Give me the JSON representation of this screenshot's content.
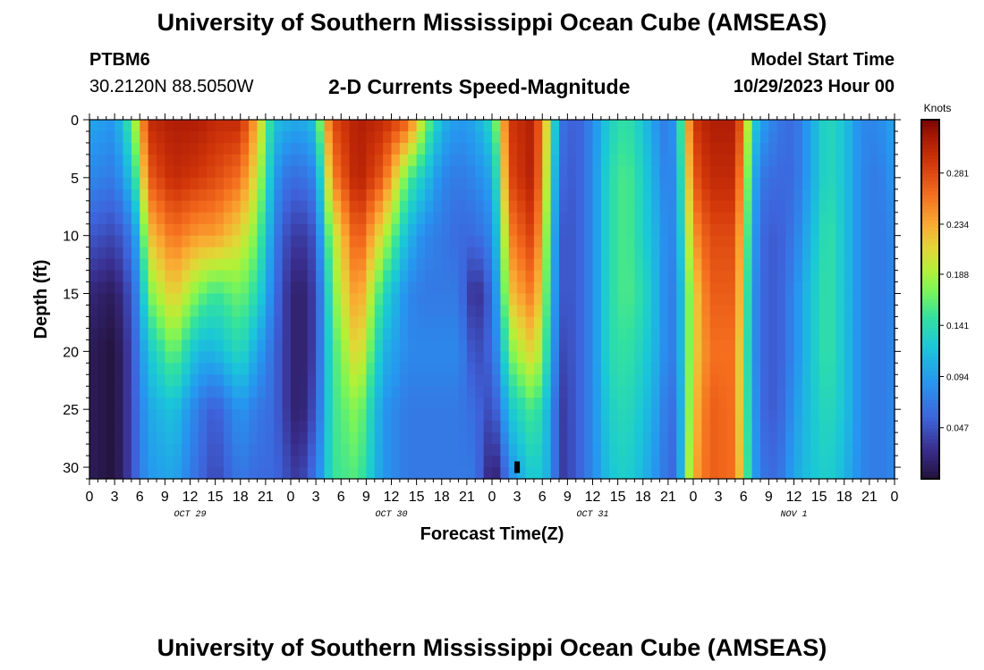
{
  "header": {
    "title": "University of Southern Mississippi Ocean Cube (AMSEAS)",
    "station": "PTBM6",
    "location": "30.2120N  88.5050W",
    "subtitle": "2-D Currents Speed-Magnitude",
    "model_label": "Model Start Time",
    "model_time": "10/29/2023 Hour 00"
  },
  "footer": {
    "title": "University of Southern Mississippi Ocean Cube (AMSEAS)"
  },
  "chart_data": {
    "type": "heatmap",
    "title": "2-D Currents Speed-Magnitude",
    "xlabel": "Forecast Time(Z)",
    "ylabel": "Depth (ft)",
    "ylim": [
      0,
      31
    ],
    "xlim": [
      0,
      96
    ],
    "x_tick_labels": [
      "0",
      "3",
      "6",
      "9",
      "12",
      "15",
      "18",
      "21",
      "0",
      "3",
      "6",
      "9",
      "12",
      "15",
      "18",
      "21",
      "0",
      "3",
      "6",
      "9",
      "12",
      "15",
      "18",
      "21",
      "0",
      "3",
      "6",
      "9",
      "12",
      "15",
      "18",
      "21",
      "0"
    ],
    "y_ticks": [
      0,
      5,
      10,
      15,
      20,
      25,
      30
    ],
    "day_labels": [
      "OCT 29",
      "OCT 30",
      "OCT 31",
      "NOV 1"
    ],
    "colorbar": {
      "unit": "Knots",
      "ticks": [
        "0.281",
        "0.234",
        "0.188",
        "0.141",
        "0.094",
        "0.047"
      ],
      "tick_values": [
        0.281,
        0.234,
        0.188,
        0.141,
        0.094,
        0.047
      ],
      "range": [
        0,
        0.33
      ]
    },
    "profile_keyframes_depths_ft": [
      0,
      5,
      10,
      15,
      20,
      25,
      31
    ],
    "profile_keyframes_speeds_kn": [
      {
        "t": 0,
        "v": [
          0.1,
          0.08,
          0.05,
          0.02,
          0.01,
          0.01,
          0.01
        ]
      },
      {
        "t": 3,
        "v": [
          0.09,
          0.07,
          0.04,
          0.01,
          0.0,
          0.0,
          0.0
        ]
      },
      {
        "t": 5,
        "v": [
          0.16,
          0.12,
          0.07,
          0.05,
          0.04,
          0.04,
          0.04
        ]
      },
      {
        "t": 6,
        "v": [
          0.22,
          0.18,
          0.12,
          0.09,
          0.08,
          0.07,
          0.07
        ]
      },
      {
        "t": 7,
        "v": [
          0.3,
          0.27,
          0.22,
          0.17,
          0.12,
          0.1,
          0.09
        ]
      },
      {
        "t": 10,
        "v": [
          0.31,
          0.3,
          0.26,
          0.22,
          0.17,
          0.12,
          0.1
        ]
      },
      {
        "t": 13,
        "v": [
          0.31,
          0.29,
          0.24,
          0.17,
          0.11,
          0.07,
          0.06
        ]
      },
      {
        "t": 15,
        "v": [
          0.3,
          0.28,
          0.24,
          0.15,
          0.11,
          0.05,
          0.04
        ]
      },
      {
        "t": 18,
        "v": [
          0.3,
          0.26,
          0.21,
          0.17,
          0.14,
          0.09,
          0.07
        ]
      },
      {
        "t": 20,
        "v": [
          0.23,
          0.2,
          0.17,
          0.14,
          0.1,
          0.07,
          0.06
        ]
      },
      {
        "t": 22,
        "v": [
          0.12,
          0.1,
          0.08,
          0.07,
          0.06,
          0.06,
          0.06
        ]
      },
      {
        "t": 23,
        "v": [
          0.11,
          0.07,
          0.05,
          0.04,
          0.04,
          0.04,
          0.05
        ]
      },
      {
        "t": 25,
        "v": [
          0.1,
          0.06,
          0.03,
          0.01,
          0.01,
          0.01,
          0.03
        ]
      },
      {
        "t": 27,
        "v": [
          0.12,
          0.08,
          0.05,
          0.04,
          0.04,
          0.05,
          0.07
        ]
      },
      {
        "t": 28,
        "v": [
          0.22,
          0.17,
          0.13,
          0.1,
          0.1,
          0.1,
          0.11
        ]
      },
      {
        "t": 29,
        "v": [
          0.28,
          0.25,
          0.19,
          0.17,
          0.15,
          0.15,
          0.15
        ]
      },
      {
        "t": 32,
        "v": [
          0.31,
          0.31,
          0.28,
          0.25,
          0.22,
          0.18,
          0.16
        ]
      },
      {
        "t": 35,
        "v": [
          0.3,
          0.27,
          0.2,
          0.14,
          0.11,
          0.09,
          0.09
        ]
      },
      {
        "t": 38,
        "v": [
          0.27,
          0.16,
          0.11,
          0.08,
          0.08,
          0.07,
          0.07
        ]
      },
      {
        "t": 40,
        "v": [
          0.18,
          0.12,
          0.08,
          0.07,
          0.08,
          0.07,
          0.07
        ]
      },
      {
        "t": 42,
        "v": [
          0.11,
          0.08,
          0.07,
          0.07,
          0.08,
          0.07,
          0.07
        ]
      },
      {
        "t": 44,
        "v": [
          0.09,
          0.07,
          0.06,
          0.07,
          0.08,
          0.07,
          0.07
        ]
      },
      {
        "t": 46,
        "v": [
          0.1,
          0.08,
          0.06,
          0.02,
          0.04,
          0.06,
          0.07
        ]
      },
      {
        "t": 48,
        "v": [
          0.14,
          0.1,
          0.08,
          0.06,
          0.06,
          0.04,
          0.01
        ]
      },
      {
        "t": 49,
        "v": [
          0.2,
          0.17,
          0.14,
          0.12,
          0.1,
          0.07,
          0.03
        ]
      },
      {
        "t": 50,
        "v": [
          0.29,
          0.28,
          0.25,
          0.22,
          0.17,
          0.12,
          0.08
        ]
      },
      {
        "t": 53,
        "v": [
          0.31,
          0.31,
          0.29,
          0.26,
          0.22,
          0.16,
          0.13
        ]
      },
      {
        "t": 55,
        "v": [
          0.18,
          0.16,
          0.14,
          0.13,
          0.12,
          0.1,
          0.1
        ]
      },
      {
        "t": 56,
        "v": [
          0.07,
          0.06,
          0.05,
          0.05,
          0.04,
          0.03,
          0.03
        ]
      },
      {
        "t": 58,
        "v": [
          0.05,
          0.05,
          0.05,
          0.05,
          0.05,
          0.05,
          0.05
        ]
      },
      {
        "t": 60,
        "v": [
          0.08,
          0.08,
          0.08,
          0.08,
          0.08,
          0.08,
          0.08
        ]
      },
      {
        "t": 62,
        "v": [
          0.13,
          0.14,
          0.14,
          0.14,
          0.14,
          0.13,
          0.12
        ]
      },
      {
        "t": 64,
        "v": [
          0.15,
          0.16,
          0.16,
          0.16,
          0.15,
          0.14,
          0.13
        ]
      },
      {
        "t": 66,
        "v": [
          0.12,
          0.13,
          0.13,
          0.14,
          0.13,
          0.12,
          0.11
        ]
      },
      {
        "t": 68,
        "v": [
          0.08,
          0.09,
          0.1,
          0.1,
          0.1,
          0.09,
          0.08
        ]
      },
      {
        "t": 69,
        "v": [
          0.07,
          0.07,
          0.07,
          0.07,
          0.07,
          0.06,
          0.06
        ]
      },
      {
        "t": 70,
        "v": [
          0.1,
          0.09,
          0.09,
          0.08,
          0.08,
          0.07,
          0.06
        ]
      },
      {
        "t": 71,
        "v": [
          0.2,
          0.18,
          0.16,
          0.14,
          0.14,
          0.14,
          0.15
        ]
      },
      {
        "t": 72,
        "v": [
          0.29,
          0.27,
          0.24,
          0.21,
          0.21,
          0.22,
          0.23
        ]
      },
      {
        "t": 74,
        "v": [
          0.31,
          0.3,
          0.28,
          0.27,
          0.26,
          0.27,
          0.27
        ]
      },
      {
        "t": 77,
        "v": [
          0.31,
          0.3,
          0.28,
          0.27,
          0.26,
          0.26,
          0.26
        ]
      },
      {
        "t": 78,
        "v": [
          0.25,
          0.22,
          0.2,
          0.19,
          0.18,
          0.18,
          0.19
        ]
      },
      {
        "t": 79,
        "v": [
          0.14,
          0.12,
          0.11,
          0.1,
          0.1,
          0.11,
          0.11
        ]
      },
      {
        "t": 80,
        "v": [
          0.1,
          0.07,
          0.06,
          0.06,
          0.06,
          0.06,
          0.07
        ]
      },
      {
        "t": 82,
        "v": [
          0.07,
          0.06,
          0.05,
          0.05,
          0.05,
          0.05,
          0.06
        ]
      },
      {
        "t": 84,
        "v": [
          0.06,
          0.06,
          0.07,
          0.08,
          0.08,
          0.09,
          0.1
        ]
      },
      {
        "t": 86,
        "v": [
          0.1,
          0.1,
          0.11,
          0.12,
          0.12,
          0.12,
          0.12
        ]
      },
      {
        "t": 88,
        "v": [
          0.14,
          0.14,
          0.15,
          0.15,
          0.15,
          0.14,
          0.13
        ]
      },
      {
        "t": 90,
        "v": [
          0.12,
          0.12,
          0.12,
          0.12,
          0.12,
          0.12,
          0.11
        ]
      },
      {
        "t": 92,
        "v": [
          0.08,
          0.08,
          0.08,
          0.08,
          0.08,
          0.08,
          0.08
        ]
      },
      {
        "t": 94,
        "v": [
          0.08,
          0.07,
          0.07,
          0.07,
          0.07,
          0.07,
          0.07
        ]
      },
      {
        "t": 96,
        "v": [
          0.1,
          0.09,
          0.08,
          0.08,
          0.08,
          0.08,
          0.08
        ]
      }
    ],
    "missing_data": [
      {
        "t": 51,
        "depth_from": 29.5,
        "depth_to": 30.5
      }
    ]
  },
  "colors": {
    "missing": "#000000",
    "axis": "#000000"
  }
}
